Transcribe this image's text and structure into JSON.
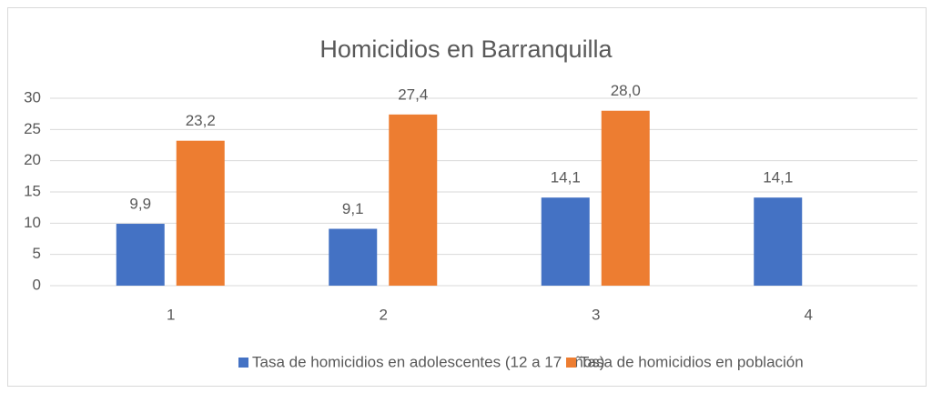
{
  "chart_data": {
    "type": "bar",
    "title": "Homicidios en Barranquilla",
    "categories": [
      "1",
      "2",
      "3",
      "4"
    ],
    "series": [
      {
        "name": "Tasa de homicidios en adolescentes (12 a 17 años)",
        "color": "#4472c4",
        "values": [
          9.9,
          9.1,
          14.1,
          14.1
        ],
        "value_labels": [
          "9,9",
          "9,1",
          "14,1",
          "14,1"
        ]
      },
      {
        "name": "Tasa de homicidios en población",
        "color": "#ed7d31",
        "values": [
          23.2,
          27.4,
          28.0,
          null
        ],
        "value_labels": [
          "23,2",
          "27,4",
          "28,0",
          null
        ]
      }
    ],
    "ylim": [
      0,
      30
    ],
    "yticks": [
      0,
      5,
      10,
      15,
      20,
      25,
      30
    ],
    "grid": true,
    "legend": "bottom"
  }
}
